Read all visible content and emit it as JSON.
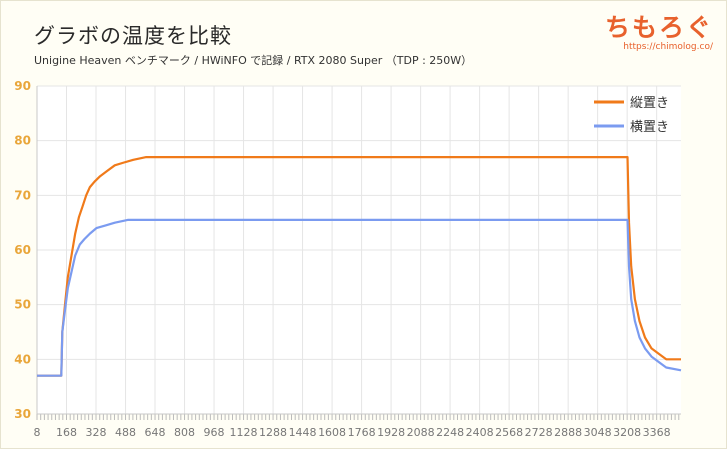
{
  "header": {
    "title": "グラボの温度を比較",
    "subtitle": "Unigine Heaven ベンチマーク / HWiNFO で記録 / RTX 2080 Super （TDP : 250W）"
  },
  "brand": {
    "name": "ちもろぐ",
    "url": "https://chimolog.co/"
  },
  "colors": {
    "vertical": "#f07a1a",
    "horizontal": "#7b9bf0",
    "grid": "#e5e5e5",
    "ytick": "#e9a63a"
  },
  "chart_data": {
    "type": "line",
    "title": "グラボの温度を比較",
    "ylim": [
      30,
      90
    ],
    "yticks": [
      30,
      40,
      50,
      60,
      70,
      80,
      90
    ],
    "xlim": [
      8,
      3500
    ],
    "xticks": [
      8,
      168,
      328,
      488,
      648,
      808,
      968,
      1128,
      1288,
      1448,
      1608,
      1768,
      1928,
      2088,
      2248,
      2408,
      2568,
      2728,
      2888,
      3048,
      3208,
      3368
    ],
    "grid": true,
    "legend_position": "top-right",
    "series": [
      {
        "name": "縦置き",
        "color": "#f07a1a",
        "points": [
          [
            8,
            37
          ],
          [
            140,
            37
          ],
          [
            145,
            45
          ],
          [
            160,
            50
          ],
          [
            175,
            55
          ],
          [
            195,
            59
          ],
          [
            215,
            63
          ],
          [
            235,
            66
          ],
          [
            255,
            68
          ],
          [
            275,
            70
          ],
          [
            295,
            71.5
          ],
          [
            320,
            72.5
          ],
          [
            350,
            73.5
          ],
          [
            390,
            74.5
          ],
          [
            430,
            75.5
          ],
          [
            480,
            76
          ],
          [
            530,
            76.5
          ],
          [
            600,
            77
          ],
          [
            700,
            77
          ],
          [
            900,
            77
          ],
          [
            1200,
            77
          ],
          [
            1500,
            77
          ],
          [
            1800,
            77
          ],
          [
            2100,
            77
          ],
          [
            2400,
            77
          ],
          [
            2700,
            77
          ],
          [
            3000,
            77
          ],
          [
            3210,
            77
          ],
          [
            3218,
            65
          ],
          [
            3230,
            57
          ],
          [
            3250,
            51
          ],
          [
            3275,
            47
          ],
          [
            3305,
            44
          ],
          [
            3340,
            42
          ],
          [
            3380,
            41
          ],
          [
            3420,
            40
          ],
          [
            3500,
            40
          ]
        ]
      },
      {
        "name": "横置き",
        "color": "#7b9bf0",
        "points": [
          [
            8,
            37
          ],
          [
            140,
            37
          ],
          [
            145,
            45
          ],
          [
            160,
            49
          ],
          [
            175,
            53
          ],
          [
            195,
            56
          ],
          [
            215,
            59
          ],
          [
            240,
            61
          ],
          [
            265,
            62
          ],
          [
            295,
            63
          ],
          [
            330,
            64
          ],
          [
            380,
            64.5
          ],
          [
            430,
            65
          ],
          [
            500,
            65.5
          ],
          [
            600,
            65.5
          ],
          [
            800,
            65.5
          ],
          [
            1100,
            65.5
          ],
          [
            1400,
            65.5
          ],
          [
            1700,
            65.5
          ],
          [
            2000,
            65.5
          ],
          [
            2300,
            65.5
          ],
          [
            2600,
            65.5
          ],
          [
            2900,
            65.5
          ],
          [
            3210,
            65.5
          ],
          [
            3218,
            57
          ],
          [
            3230,
            51
          ],
          [
            3250,
            47
          ],
          [
            3275,
            44
          ],
          [
            3305,
            42
          ],
          [
            3340,
            40.5
          ],
          [
            3380,
            39.5
          ],
          [
            3420,
            38.5
          ],
          [
            3500,
            38
          ]
        ]
      }
    ]
  }
}
